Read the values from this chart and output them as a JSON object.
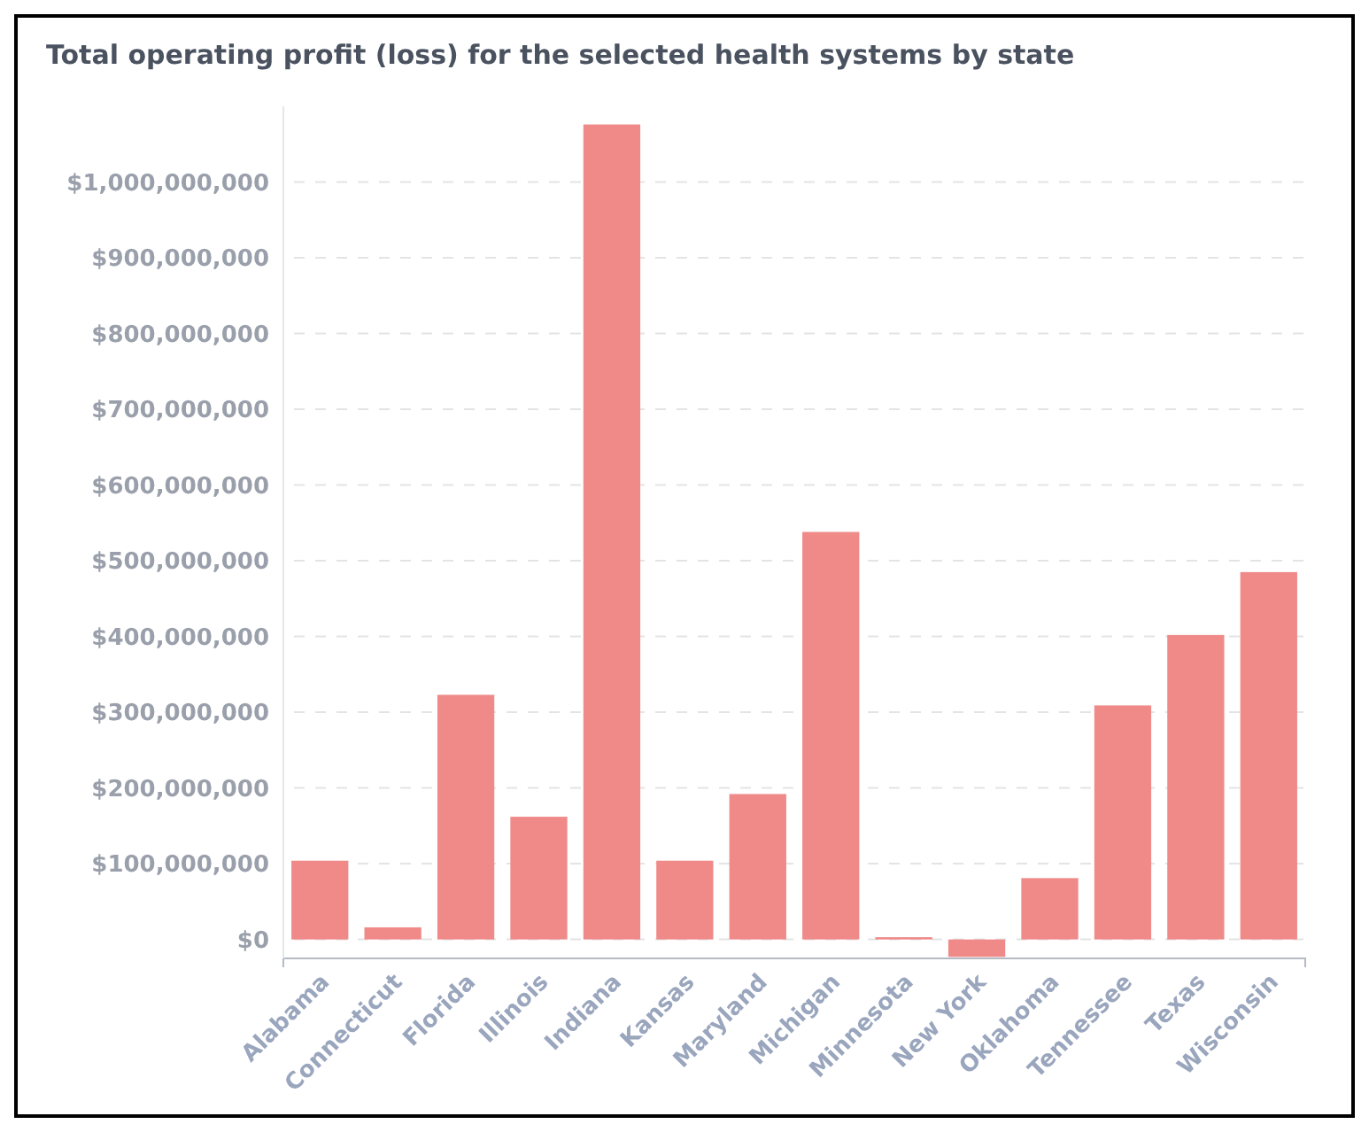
{
  "chart_data": {
    "type": "bar",
    "title": "Total operating profit (loss) for the selected health systems by state",
    "categories": [
      "Alabama",
      "Connecticut",
      "Florida",
      "Illinois",
      "Indiana",
      "Kansas",
      "Maryland",
      "Michigan",
      "Minnesota",
      "New York",
      "Oklahoma",
      "Tennessee",
      "Texas",
      "Wisconsin"
    ],
    "values": [
      104000000,
      16000000,
      323000000,
      162000000,
      1076000000,
      104000000,
      192000000,
      538000000,
      3000000,
      -23000000,
      81000000,
      309000000,
      402000000,
      485000000
    ],
    "color": "#ef8a89",
    "ylim": [
      -25000000,
      1100000000
    ],
    "yticks": [
      {
        "value": 0,
        "label": "$0"
      },
      {
        "value": 100000000,
        "label": "$100,000,000"
      },
      {
        "value": 200000000,
        "label": "$200,000,000"
      },
      {
        "value": 300000000,
        "label": "$300,000,000"
      },
      {
        "value": 400000000,
        "label": "$400,000,000"
      },
      {
        "value": 500000000,
        "label": "$500,000,000"
      },
      {
        "value": 600000000,
        "label": "$600,000,000"
      },
      {
        "value": 700000000,
        "label": "$700,000,000"
      },
      {
        "value": 800000000,
        "label": "$800,000,000"
      },
      {
        "value": 900000000,
        "label": "$900,000,000"
      },
      {
        "value": 1000000000,
        "label": "$1,000,000,000"
      }
    ],
    "grid": "y"
  }
}
